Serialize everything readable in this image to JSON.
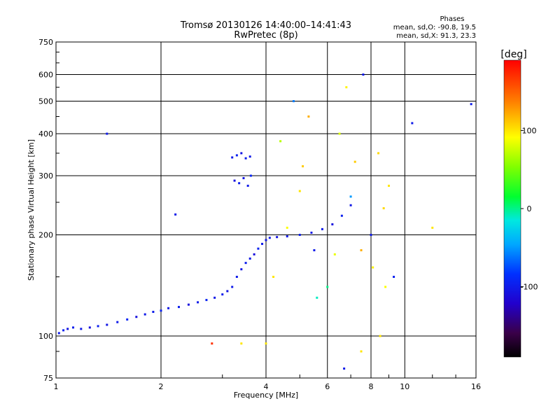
{
  "header": {
    "title_line1": "Tromsø 20130126 14:40:00–14:41:43",
    "title_line2": "RwPretec (8p)"
  },
  "phases_box": {
    "heading": "Phases",
    "line_o": "mean, sd,O: -90.8, 19.5",
    "line_x": "mean, sd,X:  91.3, 23.3"
  },
  "colorbar": {
    "unit_label": "[deg]",
    "tick_labels": [
      "100",
      "0",
      "-100"
    ],
    "tick_values": [
      100,
      0,
      -100
    ],
    "range": [
      -190,
      190
    ]
  },
  "chart_data": {
    "type": "scatter",
    "xlabel": "Frequency [MHz]",
    "ylabel": "Stationary phase Virtual Height [km]",
    "x_scale": "log",
    "y_scale": "log",
    "xlim": [
      1,
      16
    ],
    "ylim": [
      75,
      750
    ],
    "x_ticks": [
      1,
      2,
      4,
      6,
      8,
      10,
      16
    ],
    "x_tick_labels": [
      "1",
      "2",
      "4",
      "6",
      "8",
      "10",
      "16"
    ],
    "y_ticks": [
      75,
      100,
      200,
      300,
      400,
      500,
      600,
      750
    ],
    "y_tick_labels": [
      "75",
      "100",
      "200",
      "300",
      "400",
      "500",
      "600",
      "750"
    ],
    "grid": true,
    "color_encodes": "phase [deg]",
    "series": [
      {
        "x": [
          1.02,
          1.05,
          1.08,
          1.12,
          1.18,
          1.25,
          1.32,
          1.4,
          1.5,
          1.6,
          1.7,
          1.8,
          1.9,
          2.0,
          2.1,
          2.25,
          2.4,
          2.55,
          2.7,
          2.85,
          3.0,
          3.1,
          3.2
        ],
        "y": [
          102,
          104,
          105,
          106,
          105,
          106,
          107,
          108,
          110,
          112,
          114,
          116,
          118,
          119,
          121,
          122,
          124,
          126,
          128,
          130,
          133,
          136,
          140
        ],
        "phase": [
          -100,
          -95,
          -105,
          -98,
          -102,
          -110,
          -96,
          -104,
          -100,
          -92,
          -108,
          -101,
          -99,
          -95,
          -103,
          -97,
          -110,
          -100,
          -94,
          -102,
          -98,
          -105,
          -100
        ]
      },
      {
        "x": [
          3.3,
          3.4,
          3.5,
          3.6,
          3.7,
          3.8,
          3.9,
          4.0,
          4.1,
          4.3,
          4.6,
          5.0,
          5.4,
          5.8,
          6.2,
          6.6,
          7.0
        ],
        "y": [
          150,
          158,
          165,
          170,
          175,
          182,
          188,
          193,
          196,
          197,
          198,
          200,
          203,
          208,
          215,
          228,
          245
        ],
        "phase": [
          -100,
          -105,
          -98,
          -102,
          -110,
          -95,
          -100,
          -104,
          -99,
          -106,
          -101,
          -97,
          -103,
          -100,
          -108,
          -96,
          -102
        ]
      },
      {
        "x": [
          3.2,
          3.3,
          3.4,
          3.5,
          3.6,
          3.25,
          3.35,
          3.45,
          3.55,
          3.62
        ],
        "y": [
          340,
          345,
          350,
          338,
          342,
          290,
          285,
          295,
          280,
          300
        ],
        "phase": [
          -100,
          -95,
          -105,
          -98,
          -102,
          -110,
          -96,
          -104,
          -100,
          -92
        ]
      },
      {
        "x": [
          4.2,
          4.6,
          5.1,
          5.5,
          6.0,
          6.5,
          7.0,
          7.5,
          8.1,
          8.7,
          9.3,
          4.4,
          5.0,
          5.6,
          6.3,
          7.2,
          8.0,
          8.8,
          9.0,
          4.8,
          5.3,
          6.8,
          7.6,
          8.4
        ],
        "y": [
          150,
          210,
          320,
          180,
          140,
          400,
          260,
          180,
          160,
          240,
          150,
          380,
          270,
          130,
          175,
          330,
          200,
          140,
          280,
          500,
          450,
          550,
          600,
          350
        ],
        "phase": [
          100,
          90,
          110,
          -100,
          0,
          80,
          -50,
          120,
          95,
          105,
          -95,
          70,
          100,
          -10,
          85,
          110,
          -100,
          90,
          100,
          -60,
          120,
          95,
          -100,
          105
        ]
      },
      {
        "x": [
          1.4,
          2.2,
          2.8,
          3.4,
          4.0,
          6.7,
          7.5,
          8.5,
          10.5,
          12,
          15.5
        ],
        "y": [
          400,
          230,
          95,
          95,
          95,
          80,
          90,
          100,
          430,
          210,
          490
        ],
        "phase": [
          -100,
          -100,
          170,
          100,
          100,
          -100,
          100,
          100,
          -100,
          100,
          -100
        ]
      }
    ]
  }
}
